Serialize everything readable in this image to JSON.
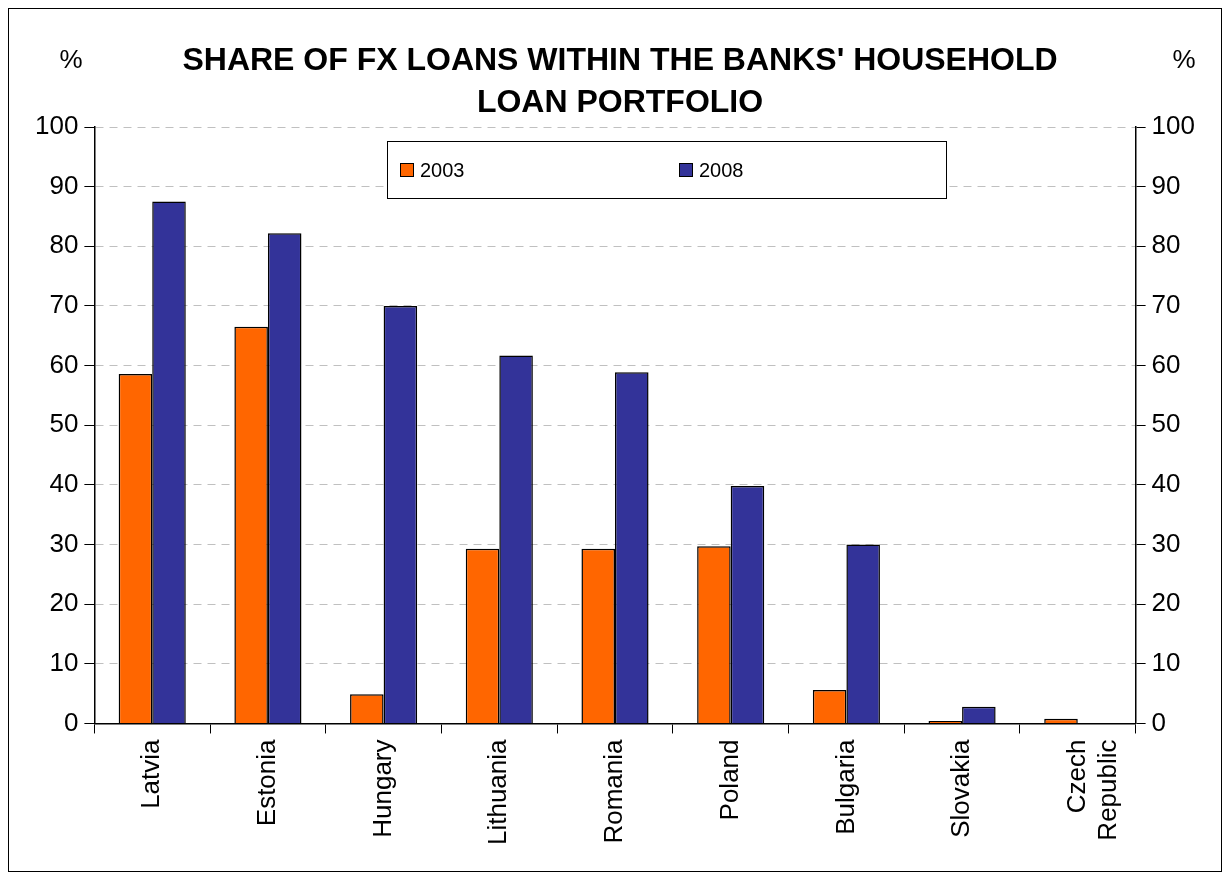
{
  "chart_data": {
    "type": "bar",
    "title": "SHARE OF FX LOANS WITHIN THE BANKS' HOUSEHOLD LOAN PORTFOLIO",
    "ylabel": "%",
    "y2label": "%",
    "categories": [
      "Latvia",
      "Estonia",
      "Hungary",
      "Lithuania",
      "Romania",
      "Poland",
      "Bulgaria",
      "Slovakia",
      "Czech Republic"
    ],
    "series": [
      {
        "name": "2003",
        "color": "#ff6600",
        "values": [
          58.6,
          66.5,
          4.9,
          29.3,
          29.3,
          29.7,
          5.6,
          0.4,
          0.8
        ]
      },
      {
        "name": "2008",
        "color": "#333399",
        "values": [
          87.5,
          82.2,
          70.0,
          61.7,
          58.9,
          39.8,
          30.0,
          2.8,
          null
        ]
      }
    ],
    "ylim": [
      0,
      100
    ],
    "yticks": [
      0,
      10,
      20,
      30,
      40,
      50,
      60,
      70,
      80,
      90,
      100
    ],
    "y2lim": [
      0,
      100
    ],
    "y2ticks": [
      0,
      10,
      20,
      30,
      40,
      50,
      60,
      70,
      80,
      90,
      100
    ],
    "grid": "y",
    "legend": "top"
  }
}
